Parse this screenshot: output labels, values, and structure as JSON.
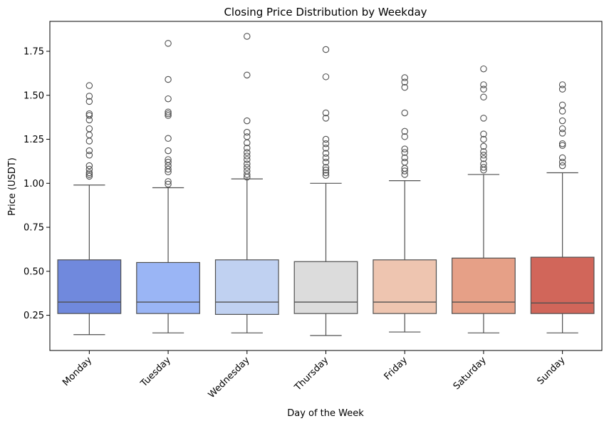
{
  "chart_data": {
    "type": "box",
    "title": "Closing Price Distribution by Weekday",
    "xlabel": "Day of the Week",
    "ylabel": "Price (USDT)",
    "ylim": [
      0.05,
      1.92
    ],
    "yticks": [
      "0.25",
      "0.50",
      "0.75",
      "1.00",
      "1.25",
      "1.50",
      "1.75"
    ],
    "grid": false,
    "categories": [
      "Monday",
      "Tuesday",
      "Wednesday",
      "Thursday",
      "Friday",
      "Saturday",
      "Sunday"
    ],
    "boxes": [
      {
        "name": "Monday",
        "color": "#7089dd",
        "whisker_low": 0.14,
        "q1": 0.26,
        "median": 0.325,
        "q3": 0.565,
        "whisker_high": 0.99,
        "outliers": [
          1.04,
          1.05,
          1.06,
          1.08,
          1.1,
          1.16,
          1.185,
          1.24,
          1.275,
          1.31,
          1.36,
          1.385,
          1.395,
          1.465,
          1.495,
          1.555
        ]
      },
      {
        "name": "Tuesday",
        "color": "#9ab5f5",
        "whisker_low": 0.15,
        "q1": 0.26,
        "median": 0.325,
        "q3": 0.55,
        "whisker_high": 0.975,
        "outliers": [
          0.995,
          1.01,
          1.065,
          1.08,
          1.1,
          1.12,
          1.135,
          1.185,
          1.255,
          1.385,
          1.395,
          1.405,
          1.48,
          1.59,
          1.795
        ]
      },
      {
        "name": "Wednesday",
        "color": "#c0d1f1",
        "whisker_low": 0.15,
        "q1": 0.255,
        "median": 0.325,
        "q3": 0.565,
        "whisker_high": 1.025,
        "outliers": [
          1.035,
          1.05,
          1.07,
          1.09,
          1.11,
          1.135,
          1.155,
          1.175,
          1.2,
          1.23,
          1.265,
          1.29,
          1.355,
          1.615,
          1.835
        ]
      },
      {
        "name": "Thursday",
        "color": "#dcdcdc",
        "whisker_low": 0.135,
        "q1": 0.26,
        "median": 0.325,
        "q3": 0.555,
        "whisker_high": 1.0,
        "outliers": [
          1.045,
          1.06,
          1.075,
          1.09,
          1.12,
          1.145,
          1.17,
          1.2,
          1.225,
          1.25,
          1.37,
          1.4,
          1.605,
          1.76
        ]
      },
      {
        "name": "Friday",
        "color": "#eec5b0",
        "whisker_low": 0.155,
        "q1": 0.26,
        "median": 0.325,
        "q3": 0.565,
        "whisker_high": 1.015,
        "outliers": [
          1.05,
          1.07,
          1.085,
          1.12,
          1.145,
          1.175,
          1.195,
          1.265,
          1.295,
          1.4,
          1.545,
          1.575,
          1.6
        ]
      },
      {
        "name": "Saturday",
        "color": "#e6a087",
        "whisker_low": 0.15,
        "q1": 0.26,
        "median": 0.325,
        "q3": 0.575,
        "whisker_high": 1.05,
        "outliers": [
          1.075,
          1.09,
          1.11,
          1.14,
          1.16,
          1.18,
          1.21,
          1.25,
          1.28,
          1.37,
          1.49,
          1.535,
          1.56,
          1.65
        ]
      },
      {
        "name": "Sunday",
        "color": "#d1665a",
        "whisker_low": 0.15,
        "q1": 0.26,
        "median": 0.32,
        "q3": 0.58,
        "whisker_high": 1.06,
        "outliers": [
          1.1,
          1.12,
          1.145,
          1.215,
          1.225,
          1.285,
          1.31,
          1.355,
          1.41,
          1.445,
          1.535,
          1.56
        ]
      }
    ]
  }
}
